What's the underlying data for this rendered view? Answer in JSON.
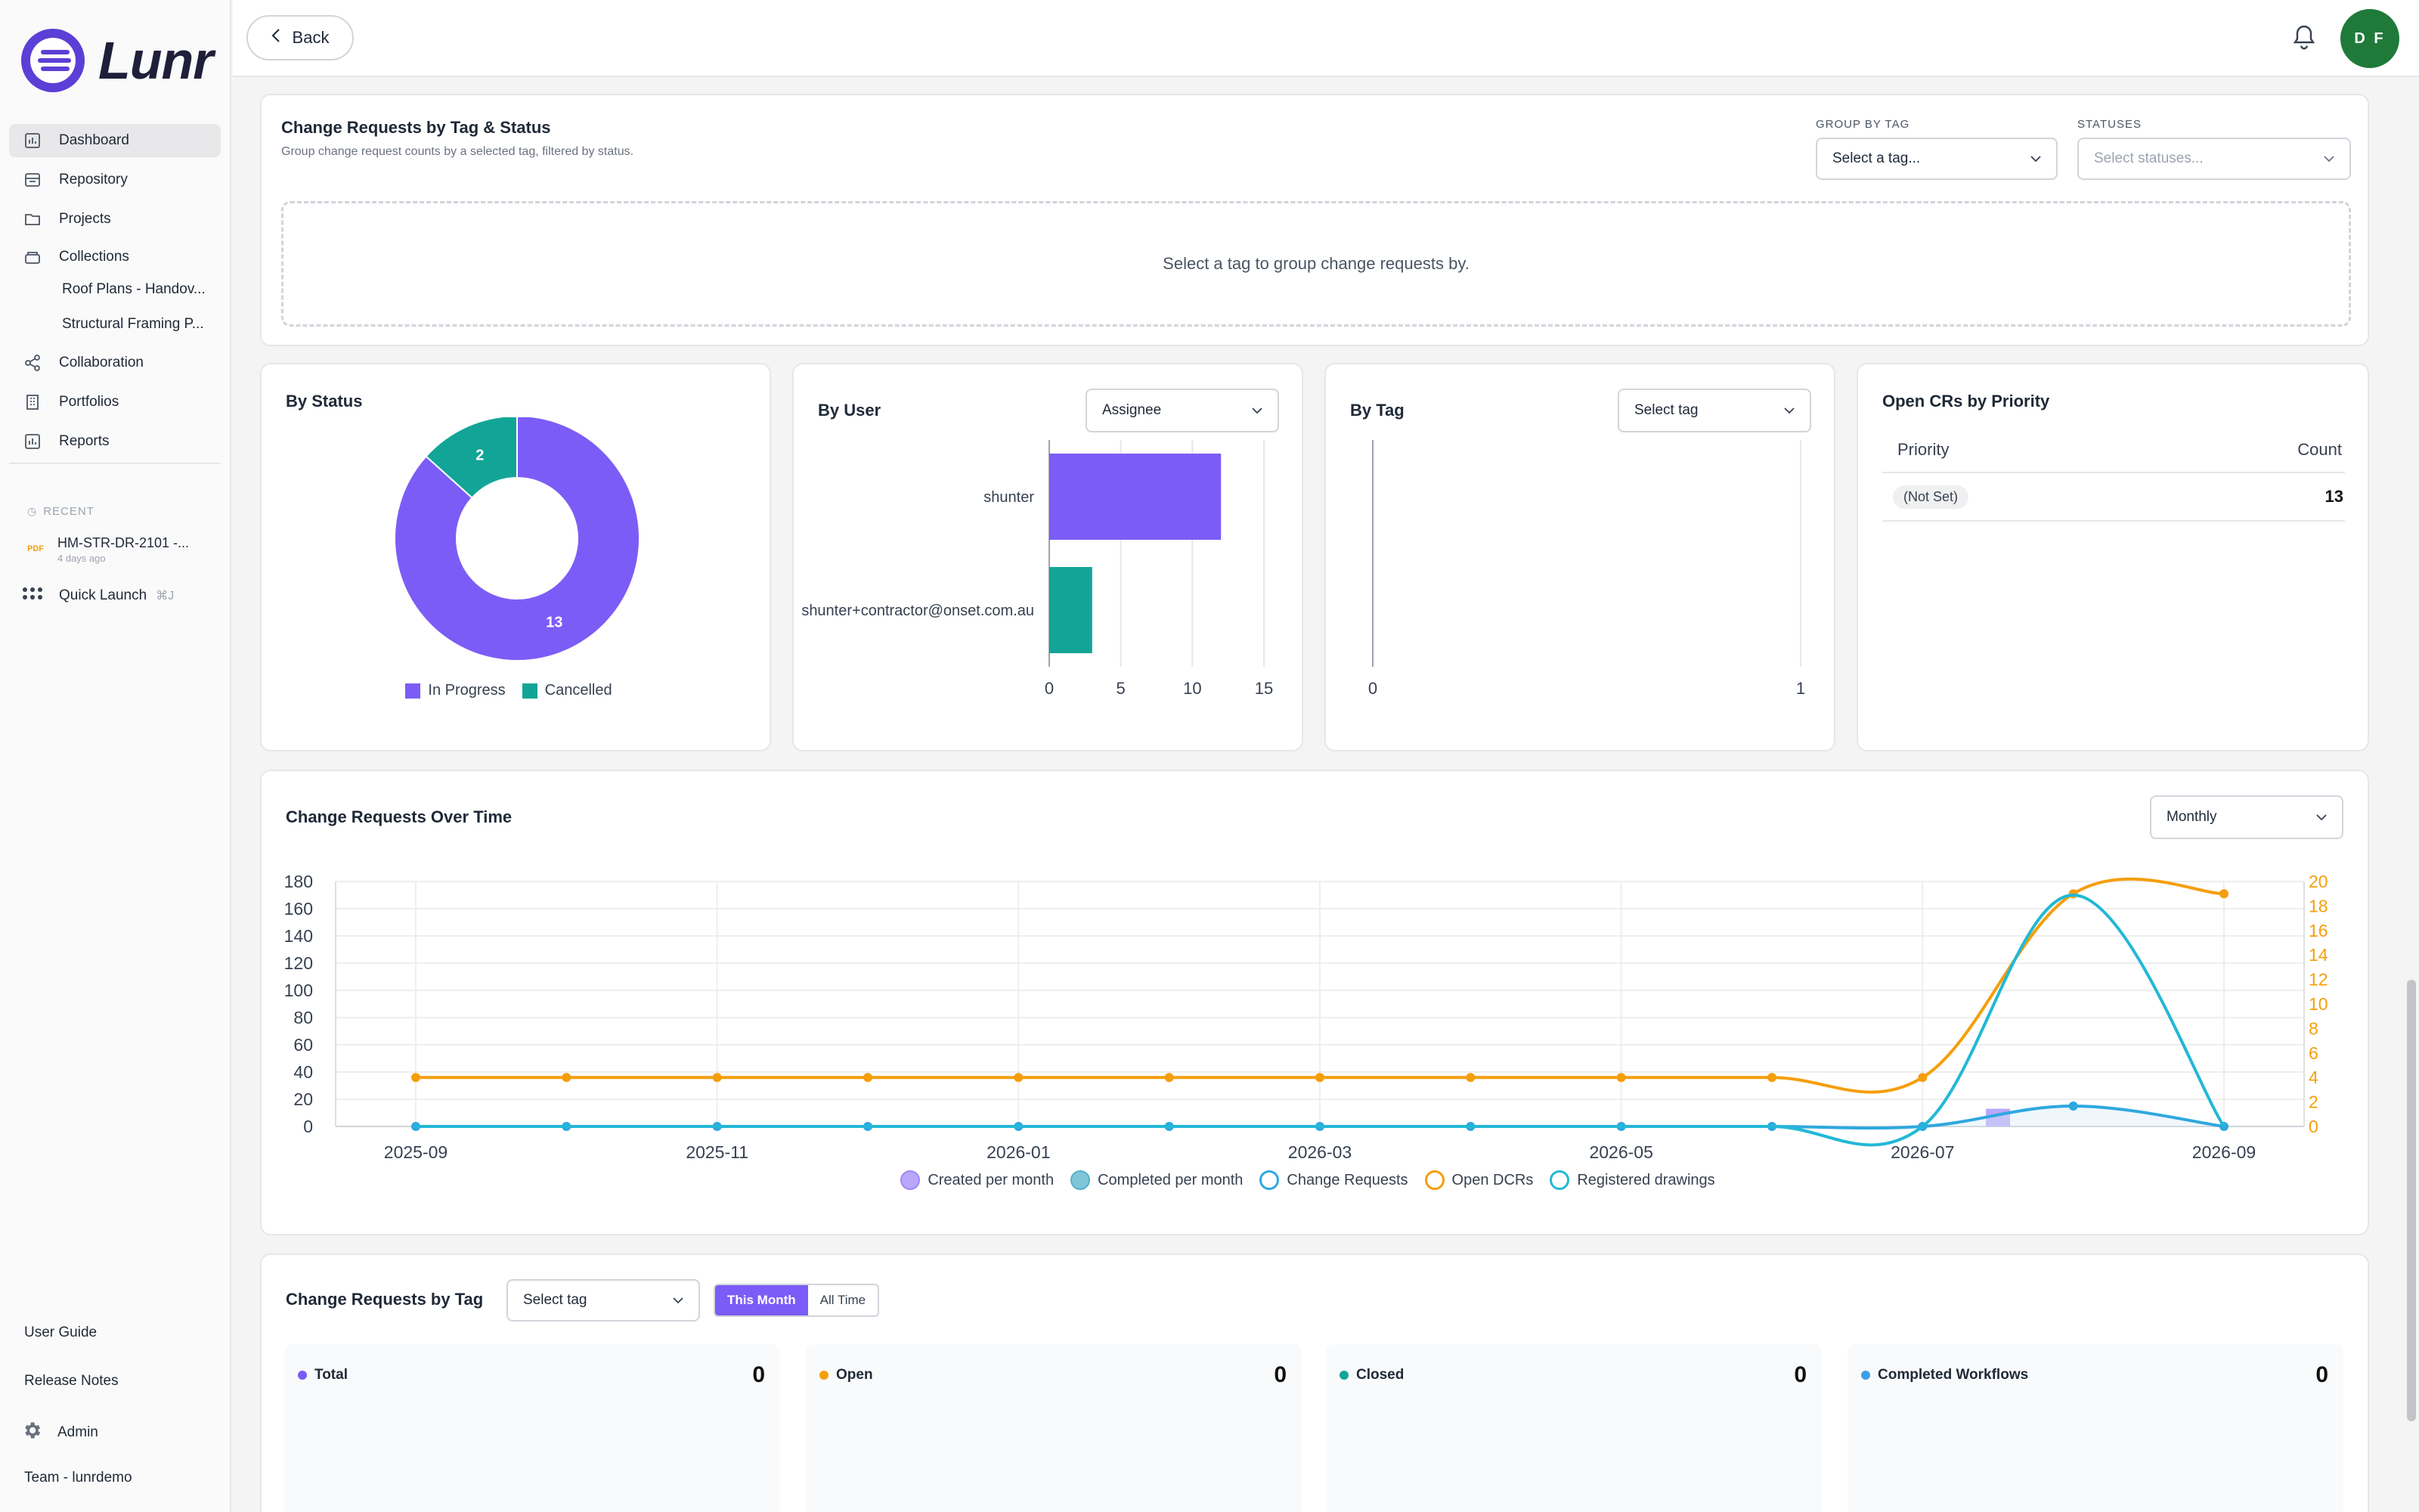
{
  "app": {
    "name": "Lunr"
  },
  "sidebar": {
    "items": [
      {
        "label": "Dashboard",
        "icon": "chart-icon"
      },
      {
        "label": "Repository",
        "icon": "repository-icon"
      },
      {
        "label": "Projects",
        "icon": "folder-icon"
      },
      {
        "label": "Collections",
        "icon": "collections-icon"
      },
      {
        "label": "Collaboration",
        "icon": "share-icon"
      },
      {
        "label": "Portfolios",
        "icon": "building-icon"
      },
      {
        "label": "Reports",
        "icon": "chart-icon"
      }
    ],
    "collections": [
      "Roof Plans - Handov...",
      "Structural Framing P..."
    ],
    "recent_label": "RECENT",
    "recent_item": {
      "badge": "PDF",
      "name": "HM-STR-DR-2101 -...",
      "time": "4 days ago"
    },
    "quick_launch": {
      "label": "Quick Launch",
      "shortcut": "⌘J"
    },
    "footer": {
      "user_guide": "User Guide",
      "release_notes": "Release Notes",
      "admin": "Admin",
      "team": "Team - lunrdemo"
    }
  },
  "topbar": {
    "back": "Back",
    "avatar_initials": "D F"
  },
  "tag_status": {
    "title": "Change Requests by Tag & Status",
    "subtitle": "Group change request counts by a selected tag, filtered by status.",
    "group_label": "GROUP BY TAG",
    "group_placeholder": "Select a tag...",
    "status_label": "STATUSES",
    "status_placeholder": "Select statuses...",
    "empty": "Select a tag to group change requests by."
  },
  "by_status": {
    "title": "By Status",
    "legend": [
      "In Progress",
      "Cancelled"
    ],
    "colors": [
      "#7c5cf6",
      "#12a597"
    ]
  },
  "by_user": {
    "title": "By User",
    "select": "Assignee"
  },
  "by_tag": {
    "title": "By Tag",
    "select": "Select tag"
  },
  "priority": {
    "title": "Open CRs by Priority",
    "col_priority": "Priority",
    "col_count": "Count",
    "rows": [
      {
        "priority": "(Not Set)",
        "count": "13"
      }
    ]
  },
  "over_time": {
    "title": "Change Requests Over Time",
    "select": "Monthly",
    "legend": [
      "Created per month",
      "Completed per month",
      "Change Requests",
      "Open DCRs",
      "Registered drawings"
    ]
  },
  "by_tag_section": {
    "title": "Change Requests by Tag",
    "select": "Select tag",
    "toggle": [
      "This Month",
      "All Time"
    ],
    "stats": [
      {
        "label": "Total",
        "value": "0",
        "color": "#7c5cf6"
      },
      {
        "label": "Open",
        "value": "0",
        "color": "#f59e0b"
      },
      {
        "label": "Closed",
        "value": "0",
        "color": "#12a597"
      },
      {
        "label": "Completed Workflows",
        "value": "0",
        "color": "#3b9fe8"
      }
    ]
  },
  "chart_data": [
    {
      "type": "pie",
      "title": "By Status",
      "categories": [
        "In Progress",
        "Cancelled"
      ],
      "values": [
        13,
        2
      ],
      "colors": [
        "#7c5cf6",
        "#12a597"
      ],
      "donut": true,
      "legend": "bottom"
    },
    {
      "type": "bar",
      "title": "By User",
      "orientation": "horizontal",
      "categories": [
        "shunter",
        "shunter+contractor@onset.com.au"
      ],
      "values": [
        12,
        3
      ],
      "colors": [
        "#7c5cf6",
        "#12a597"
      ],
      "xlim": [
        0,
        15
      ],
      "xticks": [
        "0",
        "5",
        "10",
        "15"
      ]
    },
    {
      "type": "bar",
      "title": "By Tag",
      "categories": [],
      "values": [],
      "xlim": [
        0,
        1
      ],
      "xticks": [
        "0",
        "1"
      ]
    },
    {
      "type": "line",
      "title": "Change Requests Over Time",
      "x": [
        "2025-09",
        "2025-10",
        "2025-11",
        "2025-12",
        "2026-01",
        "2026-02",
        "2026-03",
        "2026-04",
        "2026-05",
        "2026-06",
        "2026-07",
        "2026-08",
        "2026-09"
      ],
      "xticks": [
        "2025-09",
        "2025-11",
        "2026-01",
        "2026-03",
        "2026-05",
        "2026-07",
        "2026-09"
      ],
      "ylim_left": [
        0,
        180
      ],
      "yticks_left": [
        "0",
        "20",
        "40",
        "60",
        "80",
        "100",
        "120",
        "140",
        "160",
        "180"
      ],
      "ylim_right": [
        0,
        20
      ],
      "yticks_right": [
        "0",
        "2",
        "4",
        "6",
        "8",
        "10",
        "12",
        "14",
        "16",
        "18",
        "20"
      ],
      "grid": true,
      "legend": "bottom",
      "series": [
        {
          "name": "Created per month",
          "kind": "bar",
          "axis": "left",
          "color": "#b9a7fb",
          "values": [
            0,
            0,
            0,
            0,
            0,
            0,
            0,
            0,
            0,
            0,
            0,
            13,
            0
          ]
        },
        {
          "name": "Completed per month",
          "kind": "bar",
          "axis": "left",
          "color": "#7fc6d9",
          "values": [
            0,
            0,
            0,
            0,
            0,
            0,
            0,
            0,
            0,
            0,
            0,
            0,
            0
          ]
        },
        {
          "name": "Change Requests",
          "kind": "line",
          "axis": "left",
          "color": "#2fa8df",
          "values": [
            0,
            0,
            0,
            0,
            0,
            0,
            0,
            0,
            0,
            0,
            0,
            15,
            0
          ]
        },
        {
          "name": "Open DCRs",
          "kind": "line",
          "axis": "right",
          "color": "#f59e0b",
          "values": [
            4,
            4,
            4,
            4,
            4,
            4,
            4,
            4,
            4,
            4,
            4,
            19,
            19
          ]
        },
        {
          "name": "Registered drawings",
          "kind": "line",
          "axis": "left",
          "color": "#22b8d6",
          "values": [
            0,
            0,
            0,
            0,
            0,
            0,
            0,
            0,
            0,
            0,
            0,
            170,
            0
          ]
        }
      ]
    }
  ]
}
